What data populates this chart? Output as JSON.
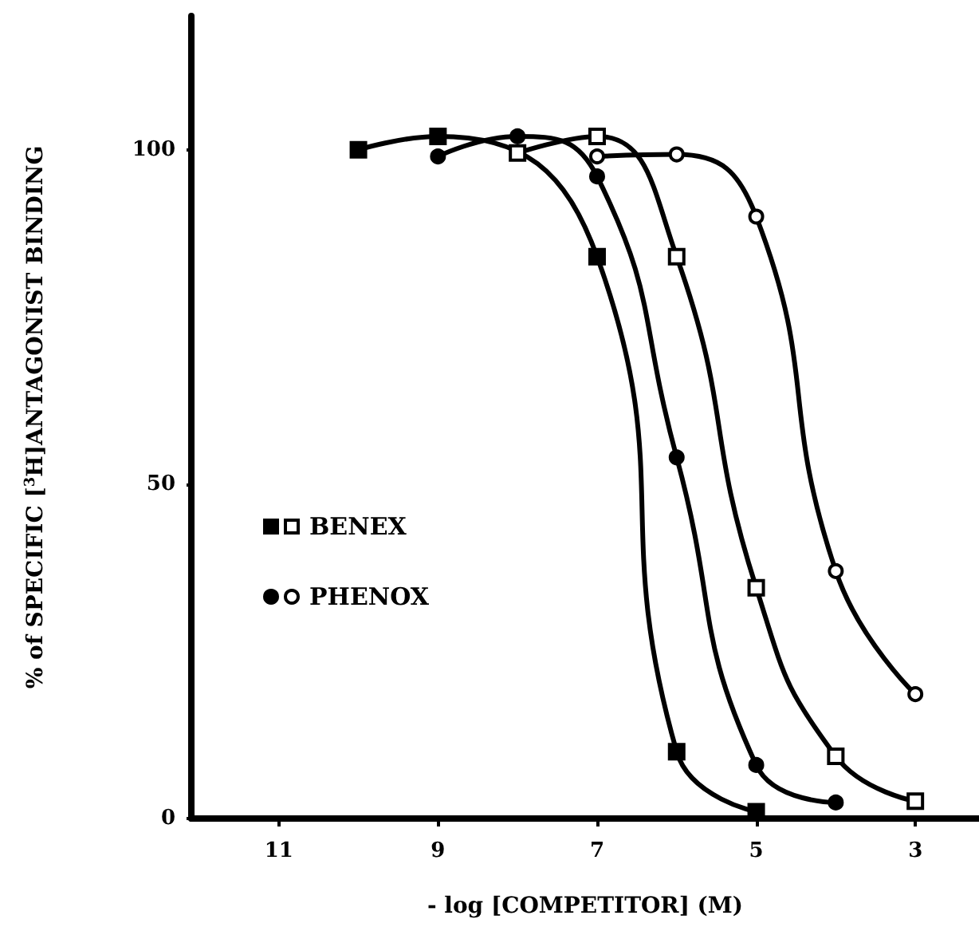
{
  "chart_data": {
    "type": "line",
    "xlabel": "- log [COMPETITOR] (M)",
    "ylabel": "% of SPECIFIC [$^{3}$H]ANTAGONIST BINDING",
    "xlim": [
      12.1,
      2.2
    ],
    "xticks": [
      11,
      9,
      7,
      5,
      3
    ],
    "ylim": [
      0,
      120
    ],
    "yticks": [
      0,
      50,
      100
    ],
    "grid": false,
    "legend": "left",
    "series": [
      {
        "color": "#000000",
        "marker": "square",
        "x": [
          10,
          9,
          7,
          6,
          5
        ],
        "values": [
          100,
          102,
          84,
          10,
          1
        ]
      },
      {
        "name": "BENEX",
        "color": "#000000",
        "colors": [
          "#ffffff",
          "#ffffff",
          "#ffffff",
          "#ffffff",
          "#ffffff",
          "#ffffff"
        ],
        "marker": "square",
        "x": [
          8,
          7,
          6,
          5,
          4,
          3
        ],
        "values": [
          99.5,
          102,
          84,
          34.5,
          9.3,
          2.6
        ]
      },
      {
        "color": "#000000",
        "marker": "circle",
        "x": [
          9,
          8,
          7,
          6,
          5,
          4
        ],
        "values": [
          99,
          102,
          96,
          54,
          8,
          2.4
        ]
      },
      {
        "name": "PHENOX",
        "color": "#000000",
        "colors": [
          "#ffffff",
          "#ffffff",
          "#ffffff",
          "#ffffff",
          "#ffffff"
        ],
        "marker": "circle",
        "x": [
          7,
          6,
          5,
          4,
          3
        ],
        "values": [
          99,
          99.3,
          90,
          37,
          18.6
        ]
      }
    ]
  }
}
